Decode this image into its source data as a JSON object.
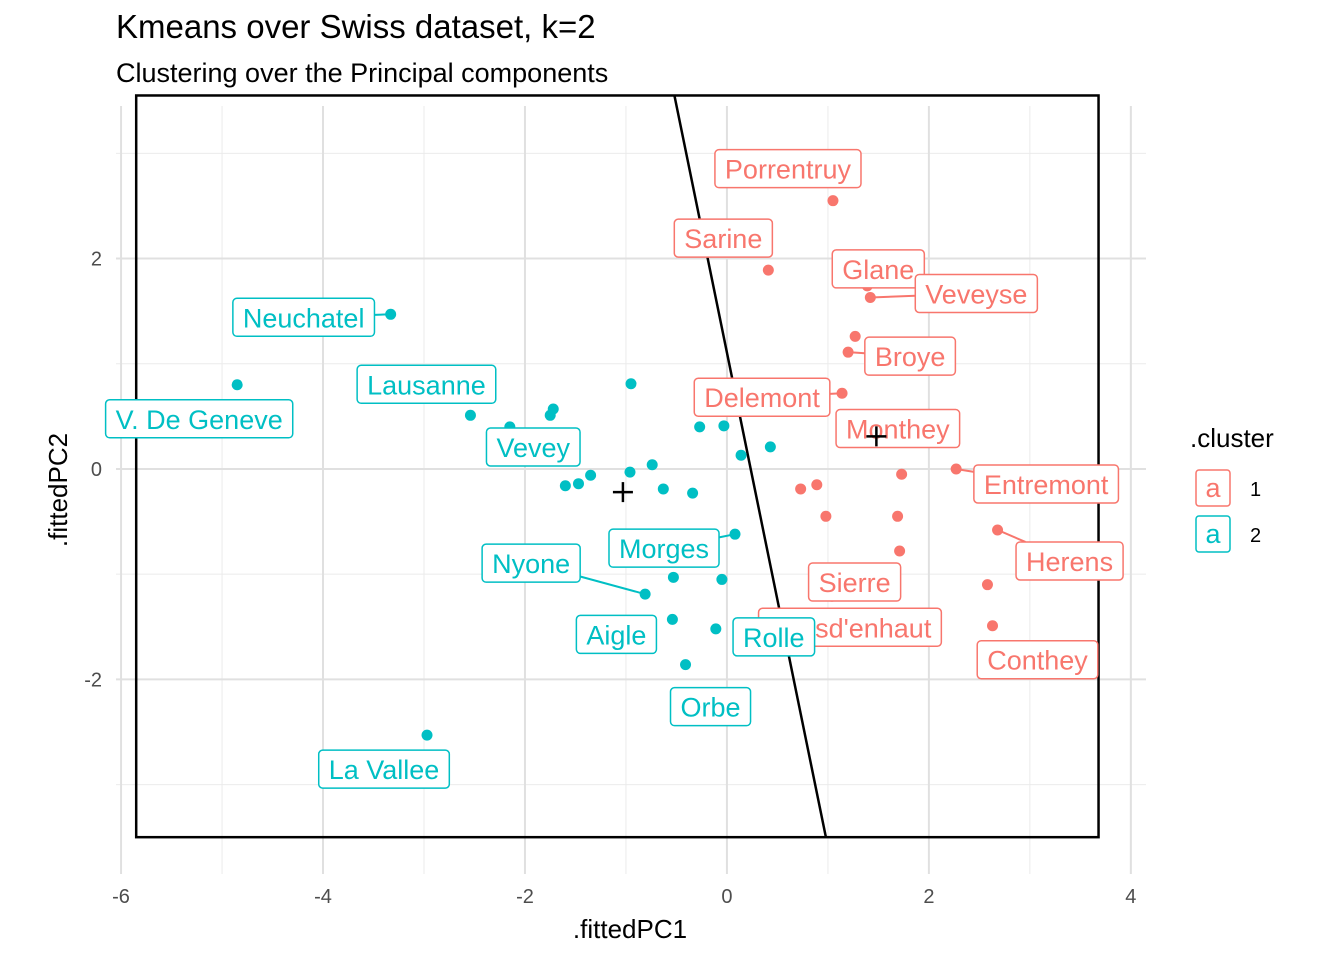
{
  "chart_data": {
    "type": "scatter",
    "title": "Kmeans over Swiss dataset, k=2",
    "subtitle": "Clustering over the Principal components",
    "xlabel": ".fittedPC1",
    "ylabel": ".fittedPC2",
    "xlim": [
      -6.05,
      4.15
    ],
    "ylim": [
      -3.85,
      3.45
    ],
    "xticks": [
      -6,
      -4,
      -2,
      0,
      2,
      4
    ],
    "yticks": [
      -2,
      0,
      2
    ],
    "grid": true,
    "legend": {
      "title": ".cluster",
      "position": "right",
      "key_glyph": "a",
      "entries": [
        {
          "label": "1",
          "color": "#F8766D"
        },
        {
          "label": "2",
          "color": "#00BFC4"
        }
      ]
    },
    "colors": {
      "1": "#F8766D",
      "2": "#00BFC4"
    },
    "points": [
      {
        "x": 1.05,
        "y": 2.55,
        "cluster": "1",
        "label": "Porrentruy"
      },
      {
        "x": 0.41,
        "y": 1.89,
        "cluster": "1",
        "label": "Sarine"
      },
      {
        "x": 1.39,
        "y": 1.74,
        "cluster": "1",
        "label": "Glane"
      },
      {
        "x": 1.42,
        "y": 1.63,
        "cluster": "1",
        "label": "Veveyse"
      },
      {
        "x": 1.27,
        "y": 1.26,
        "cluster": "1",
        "label": ""
      },
      {
        "x": 1.2,
        "y": 1.11,
        "cluster": "1",
        "label": "Broye"
      },
      {
        "x": 1.14,
        "y": 0.72,
        "cluster": "1",
        "label": "Delemont"
      },
      {
        "x": 1.95,
        "y": 0.27,
        "cluster": "1",
        "label": "Monthey"
      },
      {
        "x": 1.73,
        "y": -0.05,
        "cluster": "1",
        "label": ""
      },
      {
        "x": 2.27,
        "y": 0.0,
        "cluster": "1",
        "label": "Entremont"
      },
      {
        "x": 0.73,
        "y": -0.19,
        "cluster": "1",
        "label": ""
      },
      {
        "x": 0.89,
        "y": -0.15,
        "cluster": "1",
        "label": ""
      },
      {
        "x": 0.98,
        "y": -0.45,
        "cluster": "1",
        "label": ""
      },
      {
        "x": 1.69,
        "y": -0.45,
        "cluster": "1",
        "label": ""
      },
      {
        "x": 2.68,
        "y": -0.58,
        "cluster": "1",
        "label": "Herens"
      },
      {
        "x": 1.71,
        "y": -0.78,
        "cluster": "1",
        "label": "Sierre"
      },
      {
        "x": 2.58,
        "y": -1.1,
        "cluster": "1",
        "label": ""
      },
      {
        "x": 1.04,
        "y": -1.21,
        "cluster": "1",
        "label": "Paysd'enhaut"
      },
      {
        "x": 2.63,
        "y": -1.49,
        "cluster": "1",
        "label": "Conthey"
      },
      {
        "x": -3.33,
        "y": 1.47,
        "cluster": "2",
        "label": "Neuchatel"
      },
      {
        "x": -4.85,
        "y": 0.8,
        "cluster": "2",
        "label": "V. De Geneve"
      },
      {
        "x": -2.54,
        "y": 0.51,
        "cluster": "2",
        "label": "Lausanne"
      },
      {
        "x": -2.15,
        "y": 0.4,
        "cluster": "2",
        "label": ""
      },
      {
        "x": -1.75,
        "y": 0.51,
        "cluster": "2",
        "label": ""
      },
      {
        "x": -1.72,
        "y": 0.57,
        "cluster": "2",
        "label": "Vevey"
      },
      {
        "x": -1.6,
        "y": -0.16,
        "cluster": "2",
        "label": ""
      },
      {
        "x": -1.47,
        "y": -0.14,
        "cluster": "2",
        "label": ""
      },
      {
        "x": -1.35,
        "y": -0.06,
        "cluster": "2",
        "label": ""
      },
      {
        "x": -0.95,
        "y": 0.81,
        "cluster": "2",
        "label": ""
      },
      {
        "x": -0.96,
        "y": -0.03,
        "cluster": "2",
        "label": ""
      },
      {
        "x": -0.74,
        "y": 0.04,
        "cluster": "2",
        "label": ""
      },
      {
        "x": -0.63,
        "y": -0.19,
        "cluster": "2",
        "label": ""
      },
      {
        "x": -0.34,
        "y": -0.23,
        "cluster": "2",
        "label": ""
      },
      {
        "x": -0.27,
        "y": 0.4,
        "cluster": "2",
        "label": ""
      },
      {
        "x": -0.03,
        "y": 0.41,
        "cluster": "2",
        "label": ""
      },
      {
        "x": 0.29,
        "y": 0.7,
        "cluster": "2",
        "label": ""
      },
      {
        "x": 0.43,
        "y": 0.21,
        "cluster": "2",
        "label": ""
      },
      {
        "x": 0.14,
        "y": 0.13,
        "cluster": "2",
        "label": ""
      },
      {
        "x": 0.08,
        "y": -0.62,
        "cluster": "2",
        "label": "Morges"
      },
      {
        "x": -0.81,
        "y": -1.19,
        "cluster": "2",
        "label": "Nyone"
      },
      {
        "x": -0.53,
        "y": -1.03,
        "cluster": "2",
        "label": ""
      },
      {
        "x": -0.05,
        "y": -1.05,
        "cluster": "2",
        "label": ""
      },
      {
        "x": -0.54,
        "y": -1.43,
        "cluster": "2",
        "label": "Aigle"
      },
      {
        "x": -0.11,
        "y": -1.52,
        "cluster": "2",
        "label": "Rolle"
      },
      {
        "x": -0.41,
        "y": -1.86,
        "cluster": "2",
        "label": "Orbe"
      },
      {
        "x": -2.97,
        "y": -2.53,
        "cluster": "2",
        "label": "La Vallee"
      }
    ],
    "centroids": [
      {
        "cluster": "1",
        "x": 1.48,
        "y": 0.31
      },
      {
        "cluster": "2",
        "x": -1.03,
        "y": -0.22
      }
    ],
    "decision_boundary": [
      [
        -0.52,
        3.55
      ],
      [
        0.98,
        -3.5
      ]
    ],
    "bounding_box": {
      "xmin": -5.85,
      "xmax": 3.68,
      "ymin": -3.5,
      "ymax": 3.55
    }
  }
}
